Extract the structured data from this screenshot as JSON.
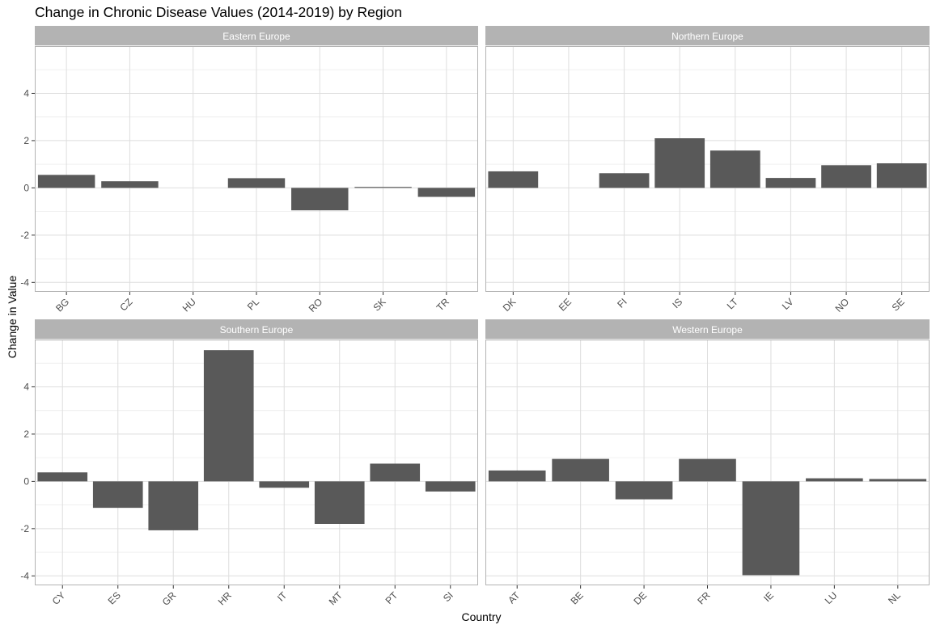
{
  "chart_data": {
    "type": "bar",
    "title": "Change in Chronic Disease Values (2014-2019) by Region",
    "xlabel": "Country",
    "ylabel": "Change in Value",
    "ylim": [
      -4.4,
      6.0
    ],
    "yticks": [
      -4,
      -2,
      0,
      2,
      4
    ],
    "grid": true,
    "bar_color": "#595959",
    "strip_color": "#b3b3b3",
    "facets": [
      {
        "region": "Eastern Europe",
        "categories": [
          "BG",
          "CZ",
          "HU",
          "PL",
          "RO",
          "SK",
          "TR"
        ],
        "values": [
          0.55,
          0.28,
          0.0,
          0.41,
          -0.95,
          0.04,
          -0.38
        ]
      },
      {
        "region": "Northern Europe",
        "categories": [
          "DK",
          "EE",
          "FI",
          "IS",
          "LT",
          "LV",
          "NO",
          "SE"
        ],
        "values": [
          0.7,
          0.0,
          0.62,
          2.1,
          1.58,
          0.42,
          0.96,
          1.04
        ]
      },
      {
        "region": "Southern Europe",
        "categories": [
          "CY",
          "ES",
          "GR",
          "HR",
          "IT",
          "MT",
          "PT",
          "SI"
        ],
        "values": [
          0.38,
          -1.12,
          -2.07,
          5.55,
          -0.27,
          -1.8,
          0.75,
          -0.43
        ]
      },
      {
        "region": "Western Europe",
        "categories": [
          "AT",
          "BE",
          "DE",
          "FR",
          "IE",
          "LU",
          "NL"
        ],
        "values": [
          0.46,
          0.95,
          -0.76,
          0.95,
          -3.97,
          0.13,
          0.1
        ]
      }
    ]
  }
}
